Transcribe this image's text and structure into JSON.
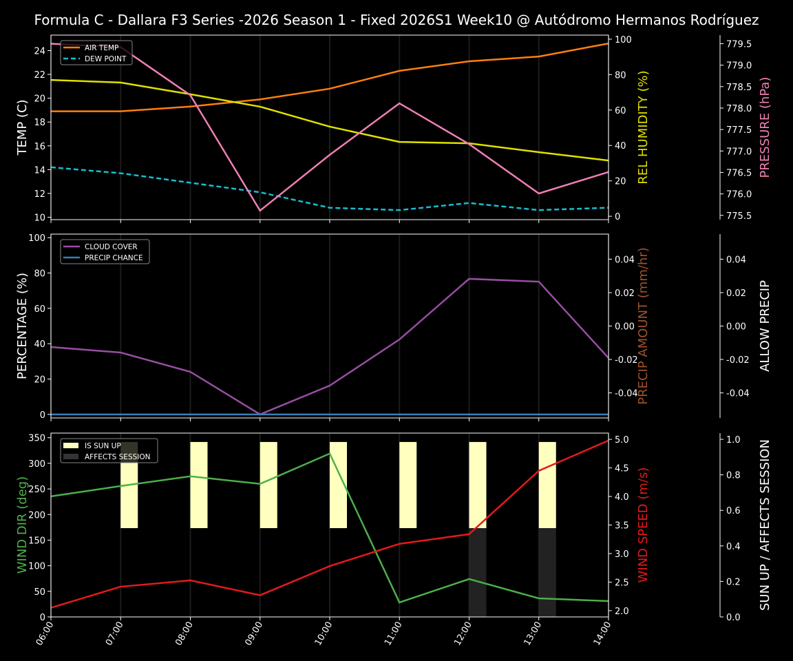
{
  "title": "Formula C - Dallara F3 Series -2026 Season 1 - Fixed 2026S1 Week10 @ Autódromo Hermanos Rodríguez",
  "chart_data": [
    {
      "type": "line",
      "x": [
        "06:00",
        "07:00",
        "08:00",
        "09:00",
        "10:00",
        "11:00",
        "12:00",
        "13:00",
        "14:00"
      ],
      "grid": "vertical",
      "legend": "top-left",
      "axes": {
        "left": {
          "label": "TEMP (C)",
          "ylim": [
            9.8,
            25.3
          ],
          "ticks": [
            10,
            12,
            14,
            16,
            18,
            20,
            22,
            24
          ],
          "color": "#ffffff"
        },
        "right": {
          "label": "REL HUMIDITY (%)",
          "ylim": [
            -1.9,
            102.3
          ],
          "ticks": [
            0,
            20,
            40,
            60,
            80,
            100
          ],
          "color": "#e0e000"
        },
        "right2": {
          "label": "PRESSURE (hPa)",
          "ylim": [
            775.4,
            779.7
          ],
          "ticks": [
            775.5,
            776.0,
            776.5,
            777.0,
            777.5,
            778.0,
            778.5,
            779.0,
            779.5
          ],
          "color": "#f07fb4"
        }
      },
      "series": [
        {
          "name": "AIR TEMP",
          "axis": "left",
          "color": "#ff7f0e",
          "dashed": false,
          "values": [
            18.9,
            18.9,
            19.3,
            19.9,
            20.8,
            22.3,
            23.1,
            23.5,
            24.6
          ]
        },
        {
          "name": "DEW POINT",
          "axis": "left",
          "color": "#17becf",
          "dashed": true,
          "values": [
            14.2,
            13.7,
            12.9,
            12.1,
            10.8,
            10.6,
            11.2,
            10.6,
            10.8
          ]
        },
        {
          "axis": "right",
          "color": "#e0e000",
          "dashed": false,
          "values": [
            77.0,
            75.5,
            68.9,
            61.9,
            50.6,
            42.0,
            41.2,
            36.2,
            31.5
          ]
        },
        {
          "axis": "right2",
          "color": "#f07fb4",
          "dashed": false,
          "values": [
            779.5,
            779.42,
            778.3,
            775.61,
            776.91,
            778.11,
            777.16,
            776.01,
            776.51
          ]
        }
      ]
    },
    {
      "type": "line",
      "x": [
        "06:00",
        "07:00",
        "08:00",
        "09:00",
        "10:00",
        "11:00",
        "12:00",
        "13:00",
        "14:00"
      ],
      "grid": "vertical",
      "legend": "top-left",
      "axes": {
        "left": {
          "label": "PERCENTAGE (%)",
          "ylim": [
            -2,
            102
          ],
          "ticks": [
            0,
            20,
            40,
            60,
            80,
            100
          ],
          "color": "#ffffff"
        },
        "right": {
          "label": "PRECIP AMOUNT (mm/hr)",
          "ylim": [
            -0.055,
            0.055
          ],
          "ticks": [
            -0.04,
            -0.02,
            0.0,
            0.02,
            0.04
          ],
          "color": "#a0522d"
        },
        "right2": {
          "label": "ALLOW PRECIP",
          "ylim": [
            -0.055,
            0.055
          ],
          "ticks": [
            -0.04,
            -0.02,
            0.0,
            0.02,
            0.04
          ],
          "color": "#ffffff"
        }
      },
      "series": [
        {
          "name": "CLOUD COVER",
          "axis": "left",
          "color": "#984ea3",
          "dashed": false,
          "values": [
            38.1,
            35.0,
            24.1,
            0,
            16.3,
            42.4,
            76.7,
            75.1,
            31.9
          ]
        },
        {
          "name": "PRECIP CHANCE",
          "axis": "left",
          "color": "#377eb8",
          "dashed": false,
          "values": [
            0,
            0,
            0,
            0,
            0,
            0,
            0,
            0,
            0
          ]
        }
      ]
    },
    {
      "type": "line",
      "x": [
        "06:00",
        "07:00",
        "08:00",
        "09:00",
        "10:00",
        "11:00",
        "12:00",
        "13:00",
        "14:00"
      ],
      "grid": "vertical",
      "legend": "top-left",
      "axes": {
        "left": {
          "label": "WIND DIR (deg)",
          "ylim": [
            0,
            359
          ],
          "ticks": [
            0,
            50,
            100,
            150,
            200,
            250,
            300,
            350
          ],
          "color": "#4daf4a"
        },
        "right": {
          "label": "WIND SPEED (m/s)",
          "ylim": [
            1.89,
            5.11
          ],
          "ticks": [
            2.0,
            2.5,
            3.0,
            3.5,
            4.0,
            4.5,
            5.0
          ],
          "color": "#e41a1c"
        },
        "right2": {
          "label": "SUN UP / AFFECTS SESSION",
          "ylim": [
            0,
            1.035
          ],
          "ticks": [
            0.0,
            0.2,
            0.4,
            0.6,
            0.8,
            1.0
          ],
          "color": "#ffffff"
        }
      },
      "series": [
        {
          "axis": "left",
          "color": "#4daf4a",
          "dashed": false,
          "values": [
            235.5,
            255.7,
            274.6,
            259.8,
            319,
            28.3,
            74,
            36.3,
            31
          ]
        },
        {
          "axis": "right",
          "color": "#e41a1c",
          "dashed": false,
          "values": [
            2.05,
            2.42,
            2.53,
            2.27,
            2.78,
            3.17,
            3.34,
            4.45,
            4.98
          ]
        }
      ],
      "bars": [
        {
          "name": "IS SUN UP",
          "color": "#ffffc0",
          "values": [
            0,
            1,
            1,
            1,
            1,
            1,
            1,
            1,
            0
          ]
        },
        {
          "name": "AFFECTS SESSION",
          "color": "#262626",
          "values": [
            0,
            0,
            0,
            0,
            0,
            0,
            1,
            1,
            0
          ]
        }
      ]
    }
  ]
}
